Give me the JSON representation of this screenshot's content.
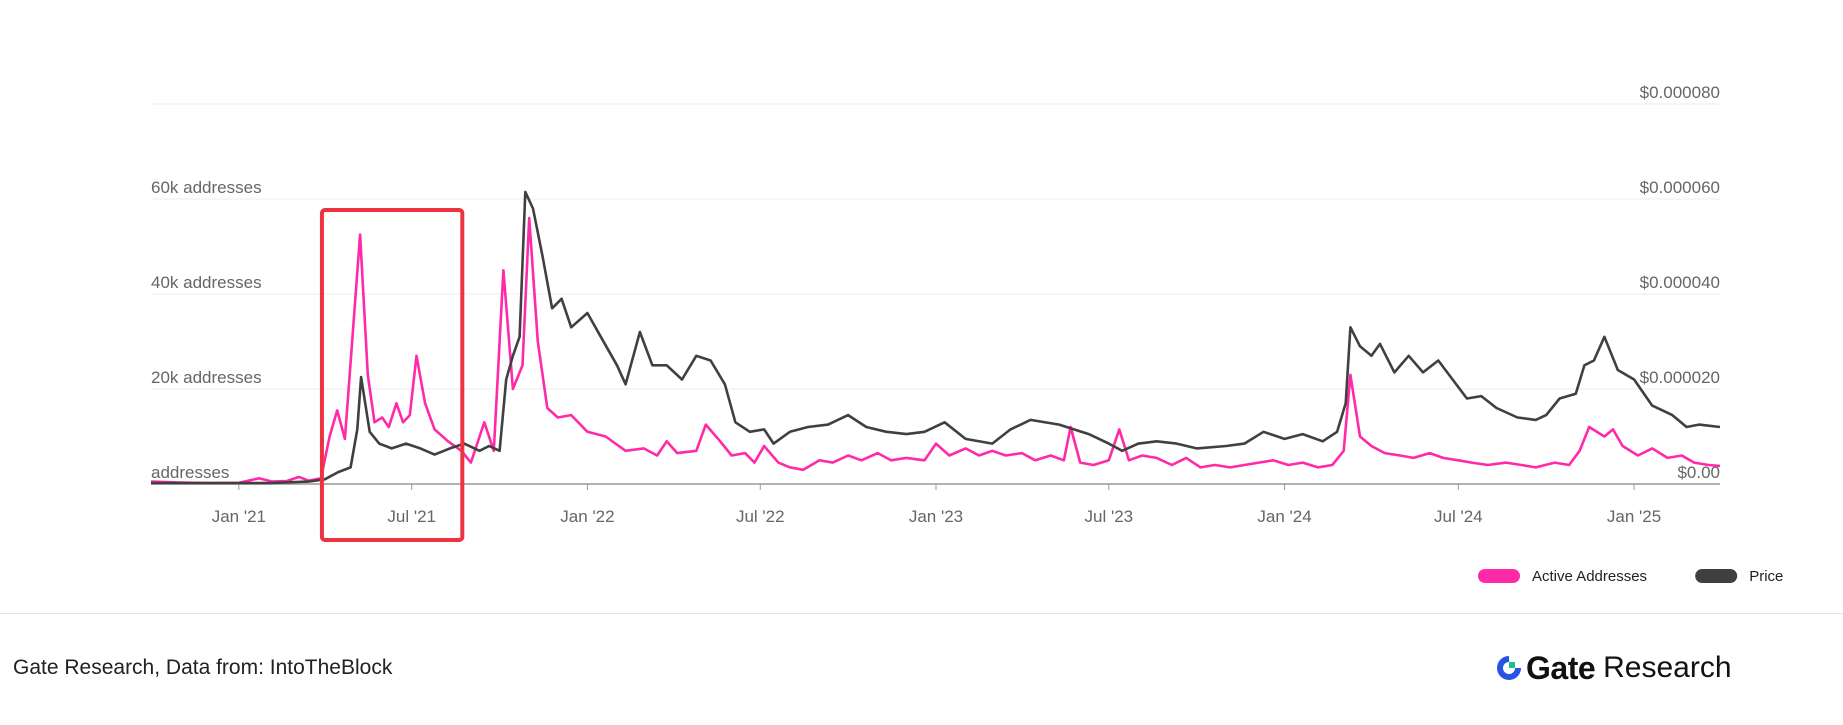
{
  "chart_data": {
    "type": "line",
    "title": "",
    "x_ticks": [
      "Jan '21",
      "Jul '21",
      "Jan '22",
      "Jul '22",
      "Jan '23",
      "Jul '23",
      "Jan '24",
      "Jul '24",
      "Jan '25"
    ],
    "x_range": [
      "2020-10-01",
      "2025-04-01"
    ],
    "y_left": {
      "label": "Active Addresses",
      "ticks": [
        "addresses",
        "20k addresses",
        "40k addresses",
        "60k addresses"
      ],
      "range": [
        0,
        80000
      ]
    },
    "y_right": {
      "label": "Price",
      "ticks": [
        "$0.00",
        "$0.000020",
        "$0.000040",
        "$0.000060",
        "$0.000080"
      ],
      "range": [
        0,
        8e-05
      ]
    },
    "grid": true,
    "legend_position": "bottom-right",
    "series": [
      {
        "name": "Active Addresses",
        "color": "#ff2aa8",
        "axis": "left",
        "points": [
          [
            "2020-10-01",
            500
          ],
          [
            "2020-11-01",
            300
          ],
          [
            "2020-12-01",
            200
          ],
          [
            "2021-01-01",
            250
          ],
          [
            "2021-01-22",
            1200
          ],
          [
            "2021-02-05",
            500
          ],
          [
            "2021-02-20",
            600
          ],
          [
            "2021-03-05",
            1500
          ],
          [
            "2021-03-15",
            700
          ],
          [
            "2021-03-28",
            1200
          ],
          [
            "2021-04-06",
            10000
          ],
          [
            "2021-04-14",
            15500
          ],
          [
            "2021-04-22",
            9500
          ],
          [
            "2021-05-08",
            52500
          ],
          [
            "2021-05-16",
            23000
          ],
          [
            "2021-05-23",
            13000
          ],
          [
            "2021-05-31",
            14000
          ],
          [
            "2021-06-07",
            12000
          ],
          [
            "2021-06-15",
            17000
          ],
          [
            "2021-06-22",
            13000
          ],
          [
            "2021-06-29",
            14500
          ],
          [
            "2021-07-06",
            27000
          ],
          [
            "2021-07-15",
            17000
          ],
          [
            "2021-07-25",
            11500
          ],
          [
            "2021-08-08",
            9000
          ],
          [
            "2021-08-22",
            7000
          ],
          [
            "2021-09-01",
            4500
          ],
          [
            "2021-09-15",
            13000
          ],
          [
            "2021-09-25",
            7000
          ],
          [
            "2021-10-05",
            45000
          ],
          [
            "2021-10-15",
            20000
          ],
          [
            "2021-10-25",
            25000
          ],
          [
            "2021-11-01",
            56000
          ],
          [
            "2021-11-10",
            30000
          ],
          [
            "2021-11-20",
            16000
          ],
          [
            "2021-12-01",
            14000
          ],
          [
            "2021-12-15",
            14500
          ],
          [
            "2022-01-01",
            11000
          ],
          [
            "2022-01-20",
            10000
          ],
          [
            "2022-02-10",
            7000
          ],
          [
            "2022-03-01",
            7500
          ],
          [
            "2022-03-15",
            6000
          ],
          [
            "2022-03-25",
            9000
          ],
          [
            "2022-04-05",
            6500
          ],
          [
            "2022-04-25",
            7000
          ],
          [
            "2022-05-05",
            12500
          ],
          [
            "2022-05-20",
            9000
          ],
          [
            "2022-06-01",
            6000
          ],
          [
            "2022-06-15",
            6500
          ],
          [
            "2022-06-25",
            4500
          ],
          [
            "2022-07-05",
            8000
          ],
          [
            "2022-07-20",
            4500
          ],
          [
            "2022-08-01",
            3500
          ],
          [
            "2022-08-15",
            3000
          ],
          [
            "2022-09-01",
            5000
          ],
          [
            "2022-09-15",
            4500
          ],
          [
            "2022-10-01",
            6000
          ],
          [
            "2022-10-15",
            5000
          ],
          [
            "2022-11-01",
            6500
          ],
          [
            "2022-11-15",
            5000
          ],
          [
            "2022-12-01",
            5500
          ],
          [
            "2022-12-20",
            5000
          ],
          [
            "2023-01-01",
            8500
          ],
          [
            "2023-01-15",
            6000
          ],
          [
            "2023-02-01",
            7500
          ],
          [
            "2023-02-15",
            6000
          ],
          [
            "2023-03-01",
            7000
          ],
          [
            "2023-03-15",
            6000
          ],
          [
            "2023-04-01",
            6500
          ],
          [
            "2023-04-15",
            5000
          ],
          [
            "2023-05-01",
            6000
          ],
          [
            "2023-05-15",
            5000
          ],
          [
            "2023-05-22",
            12000
          ],
          [
            "2023-06-01",
            4500
          ],
          [
            "2023-06-15",
            4000
          ],
          [
            "2023-07-01",
            5000
          ],
          [
            "2023-07-12",
            11500
          ],
          [
            "2023-07-22",
            5000
          ],
          [
            "2023-08-05",
            6000
          ],
          [
            "2023-08-20",
            5500
          ],
          [
            "2023-09-05",
            4000
          ],
          [
            "2023-09-20",
            5500
          ],
          [
            "2023-10-05",
            3500
          ],
          [
            "2023-10-20",
            4000
          ],
          [
            "2023-11-05",
            3500
          ],
          [
            "2023-11-20",
            4000
          ],
          [
            "2023-12-05",
            4500
          ],
          [
            "2023-12-20",
            5000
          ],
          [
            "2024-01-05",
            4000
          ],
          [
            "2024-01-20",
            4500
          ],
          [
            "2024-02-05",
            3500
          ],
          [
            "2024-02-20",
            4000
          ],
          [
            "2024-03-03",
            7000
          ],
          [
            "2024-03-10",
            23000
          ],
          [
            "2024-03-20",
            10000
          ],
          [
            "2024-04-01",
            8000
          ],
          [
            "2024-04-15",
            6500
          ],
          [
            "2024-05-01",
            6000
          ],
          [
            "2024-05-15",
            5500
          ],
          [
            "2024-06-01",
            6500
          ],
          [
            "2024-06-15",
            5500
          ],
          [
            "2024-07-01",
            5000
          ],
          [
            "2024-07-15",
            4500
          ],
          [
            "2024-08-01",
            4000
          ],
          [
            "2024-08-20",
            4500
          ],
          [
            "2024-09-05",
            4000
          ],
          [
            "2024-09-20",
            3500
          ],
          [
            "2024-10-10",
            4500
          ],
          [
            "2024-10-25",
            4000
          ],
          [
            "2024-11-05",
            7000
          ],
          [
            "2024-11-15",
            12000
          ],
          [
            "2024-12-01",
            10000
          ],
          [
            "2024-12-10",
            11500
          ],
          [
            "2024-12-20",
            8000
          ],
          [
            "2025-01-05",
            6000
          ],
          [
            "2025-01-20",
            7500
          ],
          [
            "2025-02-05",
            5500
          ],
          [
            "2025-02-20",
            6000
          ],
          [
            "2025-03-05",
            4500
          ],
          [
            "2025-03-20",
            4000
          ],
          [
            "2025-04-01",
            3800
          ]
        ]
      },
      {
        "name": "Price",
        "color": "#404040",
        "axis": "right",
        "points": [
          [
            "2020-10-01",
            2e-07
          ],
          [
            "2021-02-01",
            2e-07
          ],
          [
            "2021-03-15",
            5e-07
          ],
          [
            "2021-04-01",
            1e-06
          ],
          [
            "2021-04-15",
            2.5e-06
          ],
          [
            "2021-04-28",
            3.5e-06
          ],
          [
            "2021-05-05",
            1.15e-05
          ],
          [
            "2021-05-09",
            2.25e-05
          ],
          [
            "2021-05-18",
            1.1e-05
          ],
          [
            "2021-05-28",
            8.5e-06
          ],
          [
            "2021-06-10",
            7.5e-06
          ],
          [
            "2021-06-25",
            8.5e-06
          ],
          [
            "2021-07-10",
            7.5e-06
          ],
          [
            "2021-07-25",
            6.2e-06
          ],
          [
            "2021-08-10",
            7.5e-06
          ],
          [
            "2021-08-25",
            8.5e-06
          ],
          [
            "2021-09-10",
            7e-06
          ],
          [
            "2021-09-20",
            8e-06
          ],
          [
            "2021-10-01",
            7e-06
          ],
          [
            "2021-10-08",
            2.2e-05
          ],
          [
            "2021-10-15",
            2.7e-05
          ],
          [
            "2021-10-22",
            3.1e-05
          ],
          [
            "2021-10-28",
            6.15e-05
          ],
          [
            "2021-11-05",
            5.8e-05
          ],
          [
            "2021-11-15",
            4.8e-05
          ],
          [
            "2021-11-25",
            3.7e-05
          ],
          [
            "2021-12-05",
            3.9e-05
          ],
          [
            "2021-12-15",
            3.3e-05
          ],
          [
            "2022-01-01",
            3.6e-05
          ],
          [
            "2022-01-15",
            3.1e-05
          ],
          [
            "2022-02-01",
            2.5e-05
          ],
          [
            "2022-02-10",
            2.1e-05
          ],
          [
            "2022-02-25",
            3.2e-05
          ],
          [
            "2022-03-10",
            2.5e-05
          ],
          [
            "2022-03-25",
            2.5e-05
          ],
          [
            "2022-04-10",
            2.2e-05
          ],
          [
            "2022-04-25",
            2.7e-05
          ],
          [
            "2022-05-10",
            2.6e-05
          ],
          [
            "2022-05-25",
            2.1e-05
          ],
          [
            "2022-06-05",
            1.3e-05
          ],
          [
            "2022-06-20",
            1.1e-05
          ],
          [
            "2022-07-05",
            1.15e-05
          ],
          [
            "2022-07-15",
            8.5e-06
          ],
          [
            "2022-08-01",
            1.1e-05
          ],
          [
            "2022-08-20",
            1.2e-05
          ],
          [
            "2022-09-10",
            1.25e-05
          ],
          [
            "2022-10-01",
            1.45e-05
          ],
          [
            "2022-10-20",
            1.2e-05
          ],
          [
            "2022-11-10",
            1.1e-05
          ],
          [
            "2022-12-01",
            1.05e-05
          ],
          [
            "2022-12-20",
            1.1e-05
          ],
          [
            "2023-01-10",
            1.3e-05
          ],
          [
            "2023-02-01",
            9.5e-06
          ],
          [
            "2023-03-01",
            8.5e-06
          ],
          [
            "2023-03-20",
            1.15e-05
          ],
          [
            "2023-04-10",
            1.35e-05
          ],
          [
            "2023-05-10",
            1.25e-05
          ],
          [
            "2023-06-10",
            1.05e-05
          ],
          [
            "2023-07-01",
            8.5e-06
          ],
          [
            "2023-07-15",
            7e-06
          ],
          [
            "2023-08-01",
            8.5e-06
          ],
          [
            "2023-08-20",
            9e-06
          ],
          [
            "2023-09-10",
            8.5e-06
          ],
          [
            "2023-10-01",
            7.5e-06
          ],
          [
            "2023-11-01",
            8e-06
          ],
          [
            "2023-11-20",
            8.5e-06
          ],
          [
            "2023-12-10",
            1.1e-05
          ],
          [
            "2024-01-01",
            9.5e-06
          ],
          [
            "2024-01-20",
            1.05e-05
          ],
          [
            "2024-02-10",
            9e-06
          ],
          [
            "2024-02-25",
            1.1e-05
          ],
          [
            "2024-03-05",
            1.7e-05
          ],
          [
            "2024-03-10",
            3.3e-05
          ],
          [
            "2024-03-20",
            2.9e-05
          ],
          [
            "2024-04-01",
            2.7e-05
          ],
          [
            "2024-04-10",
            2.95e-05
          ],
          [
            "2024-04-25",
            2.35e-05
          ],
          [
            "2024-05-10",
            2.7e-05
          ],
          [
            "2024-05-25",
            2.35e-05
          ],
          [
            "2024-06-10",
            2.6e-05
          ],
          [
            "2024-06-25",
            2.2e-05
          ],
          [
            "2024-07-10",
            1.8e-05
          ],
          [
            "2024-07-25",
            1.85e-05
          ],
          [
            "2024-08-10",
            1.6e-05
          ],
          [
            "2024-09-01",
            1.4e-05
          ],
          [
            "2024-09-20",
            1.35e-05
          ],
          [
            "2024-10-01",
            1.45e-05
          ],
          [
            "2024-10-15",
            1.8e-05
          ],
          [
            "2024-11-01",
            1.9e-05
          ],
          [
            "2024-11-10",
            2.5e-05
          ],
          [
            "2024-11-20",
            2.6e-05
          ],
          [
            "2024-12-01",
            3.1e-05
          ],
          [
            "2024-12-15",
            2.4e-05
          ],
          [
            "2025-01-01",
            2.2e-05
          ],
          [
            "2025-01-20",
            1.65e-05
          ],
          [
            "2025-02-10",
            1.45e-05
          ],
          [
            "2025-02-25",
            1.2e-05
          ],
          [
            "2025-03-10",
            1.25e-05
          ],
          [
            "2025-04-01",
            1.2e-05
          ]
        ]
      }
    ]
  },
  "highlight": {
    "color": "#ee3340",
    "from": "2021-03-29",
    "to": "2021-08-23"
  },
  "footer": {
    "source": "Gate Research, Data from: IntoTheBlock",
    "brand_name": "Gate",
    "brand_sub": "Research",
    "logo_colors": [
      "#2354e6",
      "#18c08a"
    ]
  }
}
